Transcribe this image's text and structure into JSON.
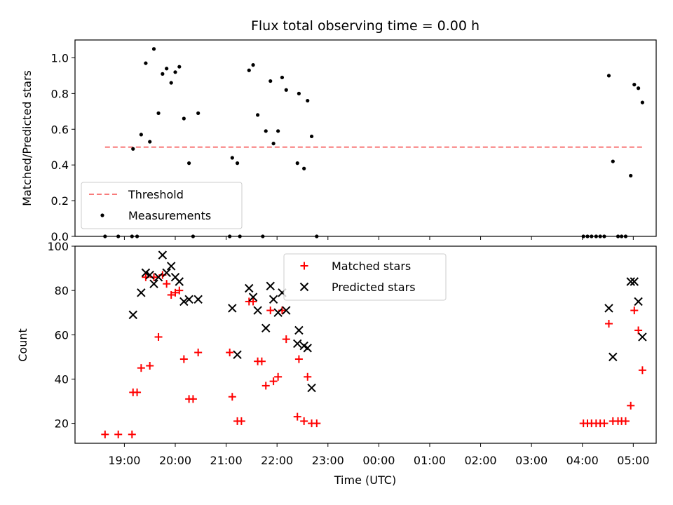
{
  "colors": {
    "threshold": "#f87b7b",
    "measurement": "#000000",
    "matched": "#ff0000",
    "predicted": "#000000"
  },
  "chart_data": [
    {
      "type": "scatter",
      "title": "Flux total observing time = 0.00 h",
      "xlabel": "",
      "ylabel": "Matched/Predicted stars",
      "ylim": [
        0,
        1.1
      ],
      "yticks": [
        "0.0",
        "0.2",
        "0.4",
        "0.6",
        "0.8",
        "1.0"
      ],
      "ytick_values": [
        0,
        0.2,
        0.4,
        0.6,
        0.8,
        1.0
      ],
      "xlim_hours": [
        18.03,
        29.45
      ],
      "legend": {
        "placement": "lower-left",
        "threshold_label": "Threshold",
        "measurements_label": "Measurements"
      },
      "threshold": {
        "value": 0.5,
        "x_start": 18.62,
        "x_end": 29.2
      },
      "measurements": [
        {
          "x": 18.62,
          "y": 0.0
        },
        {
          "x": 18.88,
          "y": 0.0
        },
        {
          "x": 19.15,
          "y": 0.0
        },
        {
          "x": 19.25,
          "y": 0.0
        },
        {
          "x": 19.17,
          "y": 0.49
        },
        {
          "x": 19.33,
          "y": 0.57
        },
        {
          "x": 19.42,
          "y": 0.97
        },
        {
          "x": 19.5,
          "y": 0.53
        },
        {
          "x": 19.58,
          "y": 1.05
        },
        {
          "x": 19.67,
          "y": 0.69
        },
        {
          "x": 19.75,
          "y": 0.91
        },
        {
          "x": 19.83,
          "y": 0.94
        },
        {
          "x": 19.92,
          "y": 0.86
        },
        {
          "x": 20.0,
          "y": 0.92
        },
        {
          "x": 20.08,
          "y": 0.95
        },
        {
          "x": 20.17,
          "y": 0.66
        },
        {
          "x": 20.27,
          "y": 0.41
        },
        {
          "x": 20.35,
          "y": 0.0
        },
        {
          "x": 20.45,
          "y": 0.69
        },
        {
          "x": 21.07,
          "y": 0.0
        },
        {
          "x": 21.12,
          "y": 0.44
        },
        {
          "x": 21.22,
          "y": 0.41
        },
        {
          "x": 21.27,
          "y": 0.0
        },
        {
          "x": 21.45,
          "y": 0.93
        },
        {
          "x": 21.53,
          "y": 0.96
        },
        {
          "x": 21.62,
          "y": 0.68
        },
        {
          "x": 21.72,
          "y": 0.0
        },
        {
          "x": 21.78,
          "y": 0.59
        },
        {
          "x": 21.87,
          "y": 0.87
        },
        {
          "x": 21.93,
          "y": 0.52
        },
        {
          "x": 22.02,
          "y": 0.59
        },
        {
          "x": 22.1,
          "y": 0.89
        },
        {
          "x": 22.18,
          "y": 0.82
        },
        {
          "x": 22.4,
          "y": 0.41
        },
        {
          "x": 22.43,
          "y": 0.8
        },
        {
          "x": 22.53,
          "y": 0.38
        },
        {
          "x": 22.6,
          "y": 0.76
        },
        {
          "x": 22.68,
          "y": 0.56
        },
        {
          "x": 22.78,
          "y": 0.0
        },
        {
          "x": 28.02,
          "y": 0.0
        },
        {
          "x": 28.1,
          "y": 0.0
        },
        {
          "x": 28.18,
          "y": 0.0
        },
        {
          "x": 28.27,
          "y": 0.0
        },
        {
          "x": 28.35,
          "y": 0.0
        },
        {
          "x": 28.43,
          "y": 0.0
        },
        {
          "x": 28.52,
          "y": 0.9
        },
        {
          "x": 28.6,
          "y": 0.42
        },
        {
          "x": 28.7,
          "y": 0.0
        },
        {
          "x": 28.77,
          "y": 0.0
        },
        {
          "x": 28.85,
          "y": 0.0
        },
        {
          "x": 28.95,
          "y": 0.34
        },
        {
          "x": 29.02,
          "y": 0.85
        },
        {
          "x": 29.1,
          "y": 0.83
        },
        {
          "x": 29.18,
          "y": 0.75
        }
      ]
    },
    {
      "type": "scatter",
      "title": "",
      "xlabel": "Time (UTC)",
      "ylabel": "Count",
      "ylim": [
        11,
        100
      ],
      "yticks": [
        "20",
        "40",
        "60",
        "80",
        "100"
      ],
      "ytick_values": [
        20,
        40,
        60,
        80,
        100
      ],
      "xlim_hours": [
        18.03,
        29.45
      ],
      "xticks": [
        "19:00",
        "20:00",
        "21:00",
        "22:00",
        "23:00",
        "00:00",
        "01:00",
        "02:00",
        "03:00",
        "04:00",
        "05:00"
      ],
      "xtick_values": [
        19,
        20,
        21,
        22,
        23,
        24,
        25,
        26,
        27,
        28,
        29
      ],
      "legend": {
        "placement": "upper-center",
        "matched_label": "Matched stars",
        "predicted_label": "Predicted stars"
      },
      "matched": [
        {
          "x": 18.62,
          "y": 15
        },
        {
          "x": 18.88,
          "y": 15
        },
        {
          "x": 19.15,
          "y": 15
        },
        {
          "x": 19.17,
          "y": 34
        },
        {
          "x": 19.25,
          "y": 34
        },
        {
          "x": 19.33,
          "y": 45
        },
        {
          "x": 19.42,
          "y": 86
        },
        {
          "x": 19.5,
          "y": 46
        },
        {
          "x": 19.58,
          "y": 86
        },
        {
          "x": 19.67,
          "y": 59
        },
        {
          "x": 19.75,
          "y": 87
        },
        {
          "x": 19.83,
          "y": 83
        },
        {
          "x": 19.92,
          "y": 78
        },
        {
          "x": 20.0,
          "y": 79
        },
        {
          "x": 20.08,
          "y": 80
        },
        {
          "x": 20.17,
          "y": 49
        },
        {
          "x": 20.27,
          "y": 31
        },
        {
          "x": 20.35,
          "y": 31
        },
        {
          "x": 20.45,
          "y": 52
        },
        {
          "x": 21.07,
          "y": 52
        },
        {
          "x": 21.12,
          "y": 32
        },
        {
          "x": 21.22,
          "y": 21
        },
        {
          "x": 21.3,
          "y": 21
        },
        {
          "x": 21.45,
          "y": 75
        },
        {
          "x": 21.53,
          "y": 75
        },
        {
          "x": 21.62,
          "y": 48
        },
        {
          "x": 21.7,
          "y": 48
        },
        {
          "x": 21.78,
          "y": 37
        },
        {
          "x": 21.87,
          "y": 71
        },
        {
          "x": 21.93,
          "y": 39
        },
        {
          "x": 22.02,
          "y": 41
        },
        {
          "x": 22.1,
          "y": 71
        },
        {
          "x": 22.18,
          "y": 58
        },
        {
          "x": 22.4,
          "y": 23
        },
        {
          "x": 22.43,
          "y": 49
        },
        {
          "x": 22.53,
          "y": 21
        },
        {
          "x": 22.6,
          "y": 41
        },
        {
          "x": 22.68,
          "y": 20
        },
        {
          "x": 22.78,
          "y": 20
        },
        {
          "x": 28.02,
          "y": 20
        },
        {
          "x": 28.1,
          "y": 20
        },
        {
          "x": 28.18,
          "y": 20
        },
        {
          "x": 28.27,
          "y": 20
        },
        {
          "x": 28.35,
          "y": 20
        },
        {
          "x": 28.43,
          "y": 20
        },
        {
          "x": 28.52,
          "y": 65
        },
        {
          "x": 28.6,
          "y": 21
        },
        {
          "x": 28.7,
          "y": 21
        },
        {
          "x": 28.77,
          "y": 21
        },
        {
          "x": 28.85,
          "y": 21
        },
        {
          "x": 28.95,
          "y": 28
        },
        {
          "x": 29.02,
          "y": 71
        },
        {
          "x": 29.1,
          "y": 62
        },
        {
          "x": 29.18,
          "y": 44
        }
      ],
      "predicted": [
        {
          "x": 19.17,
          "y": 69
        },
        {
          "x": 19.33,
          "y": 79
        },
        {
          "x": 19.42,
          "y": 88
        },
        {
          "x": 19.5,
          "y": 87
        },
        {
          "x": 19.58,
          "y": 83
        },
        {
          "x": 19.67,
          "y": 86
        },
        {
          "x": 19.75,
          "y": 96
        },
        {
          "x": 19.83,
          "y": 88
        },
        {
          "x": 19.92,
          "y": 91
        },
        {
          "x": 20.0,
          "y": 86
        },
        {
          "x": 20.08,
          "y": 84
        },
        {
          "x": 20.17,
          "y": 75
        },
        {
          "x": 20.27,
          "y": 76
        },
        {
          "x": 20.45,
          "y": 76
        },
        {
          "x": 21.12,
          "y": 72
        },
        {
          "x": 21.22,
          "y": 51
        },
        {
          "x": 21.45,
          "y": 81
        },
        {
          "x": 21.53,
          "y": 77
        },
        {
          "x": 21.62,
          "y": 71
        },
        {
          "x": 21.78,
          "y": 63
        },
        {
          "x": 21.87,
          "y": 82
        },
        {
          "x": 21.93,
          "y": 76
        },
        {
          "x": 22.02,
          "y": 70
        },
        {
          "x": 22.1,
          "y": 79
        },
        {
          "x": 22.18,
          "y": 71
        },
        {
          "x": 22.4,
          "y": 56
        },
        {
          "x": 22.43,
          "y": 62
        },
        {
          "x": 22.53,
          "y": 55
        },
        {
          "x": 22.6,
          "y": 54
        },
        {
          "x": 22.68,
          "y": 36
        },
        {
          "x": 28.52,
          "y": 72
        },
        {
          "x": 28.6,
          "y": 50
        },
        {
          "x": 28.95,
          "y": 84
        },
        {
          "x": 29.02,
          "y": 84
        },
        {
          "x": 29.1,
          "y": 75
        },
        {
          "x": 29.18,
          "y": 59
        }
      ]
    }
  ]
}
